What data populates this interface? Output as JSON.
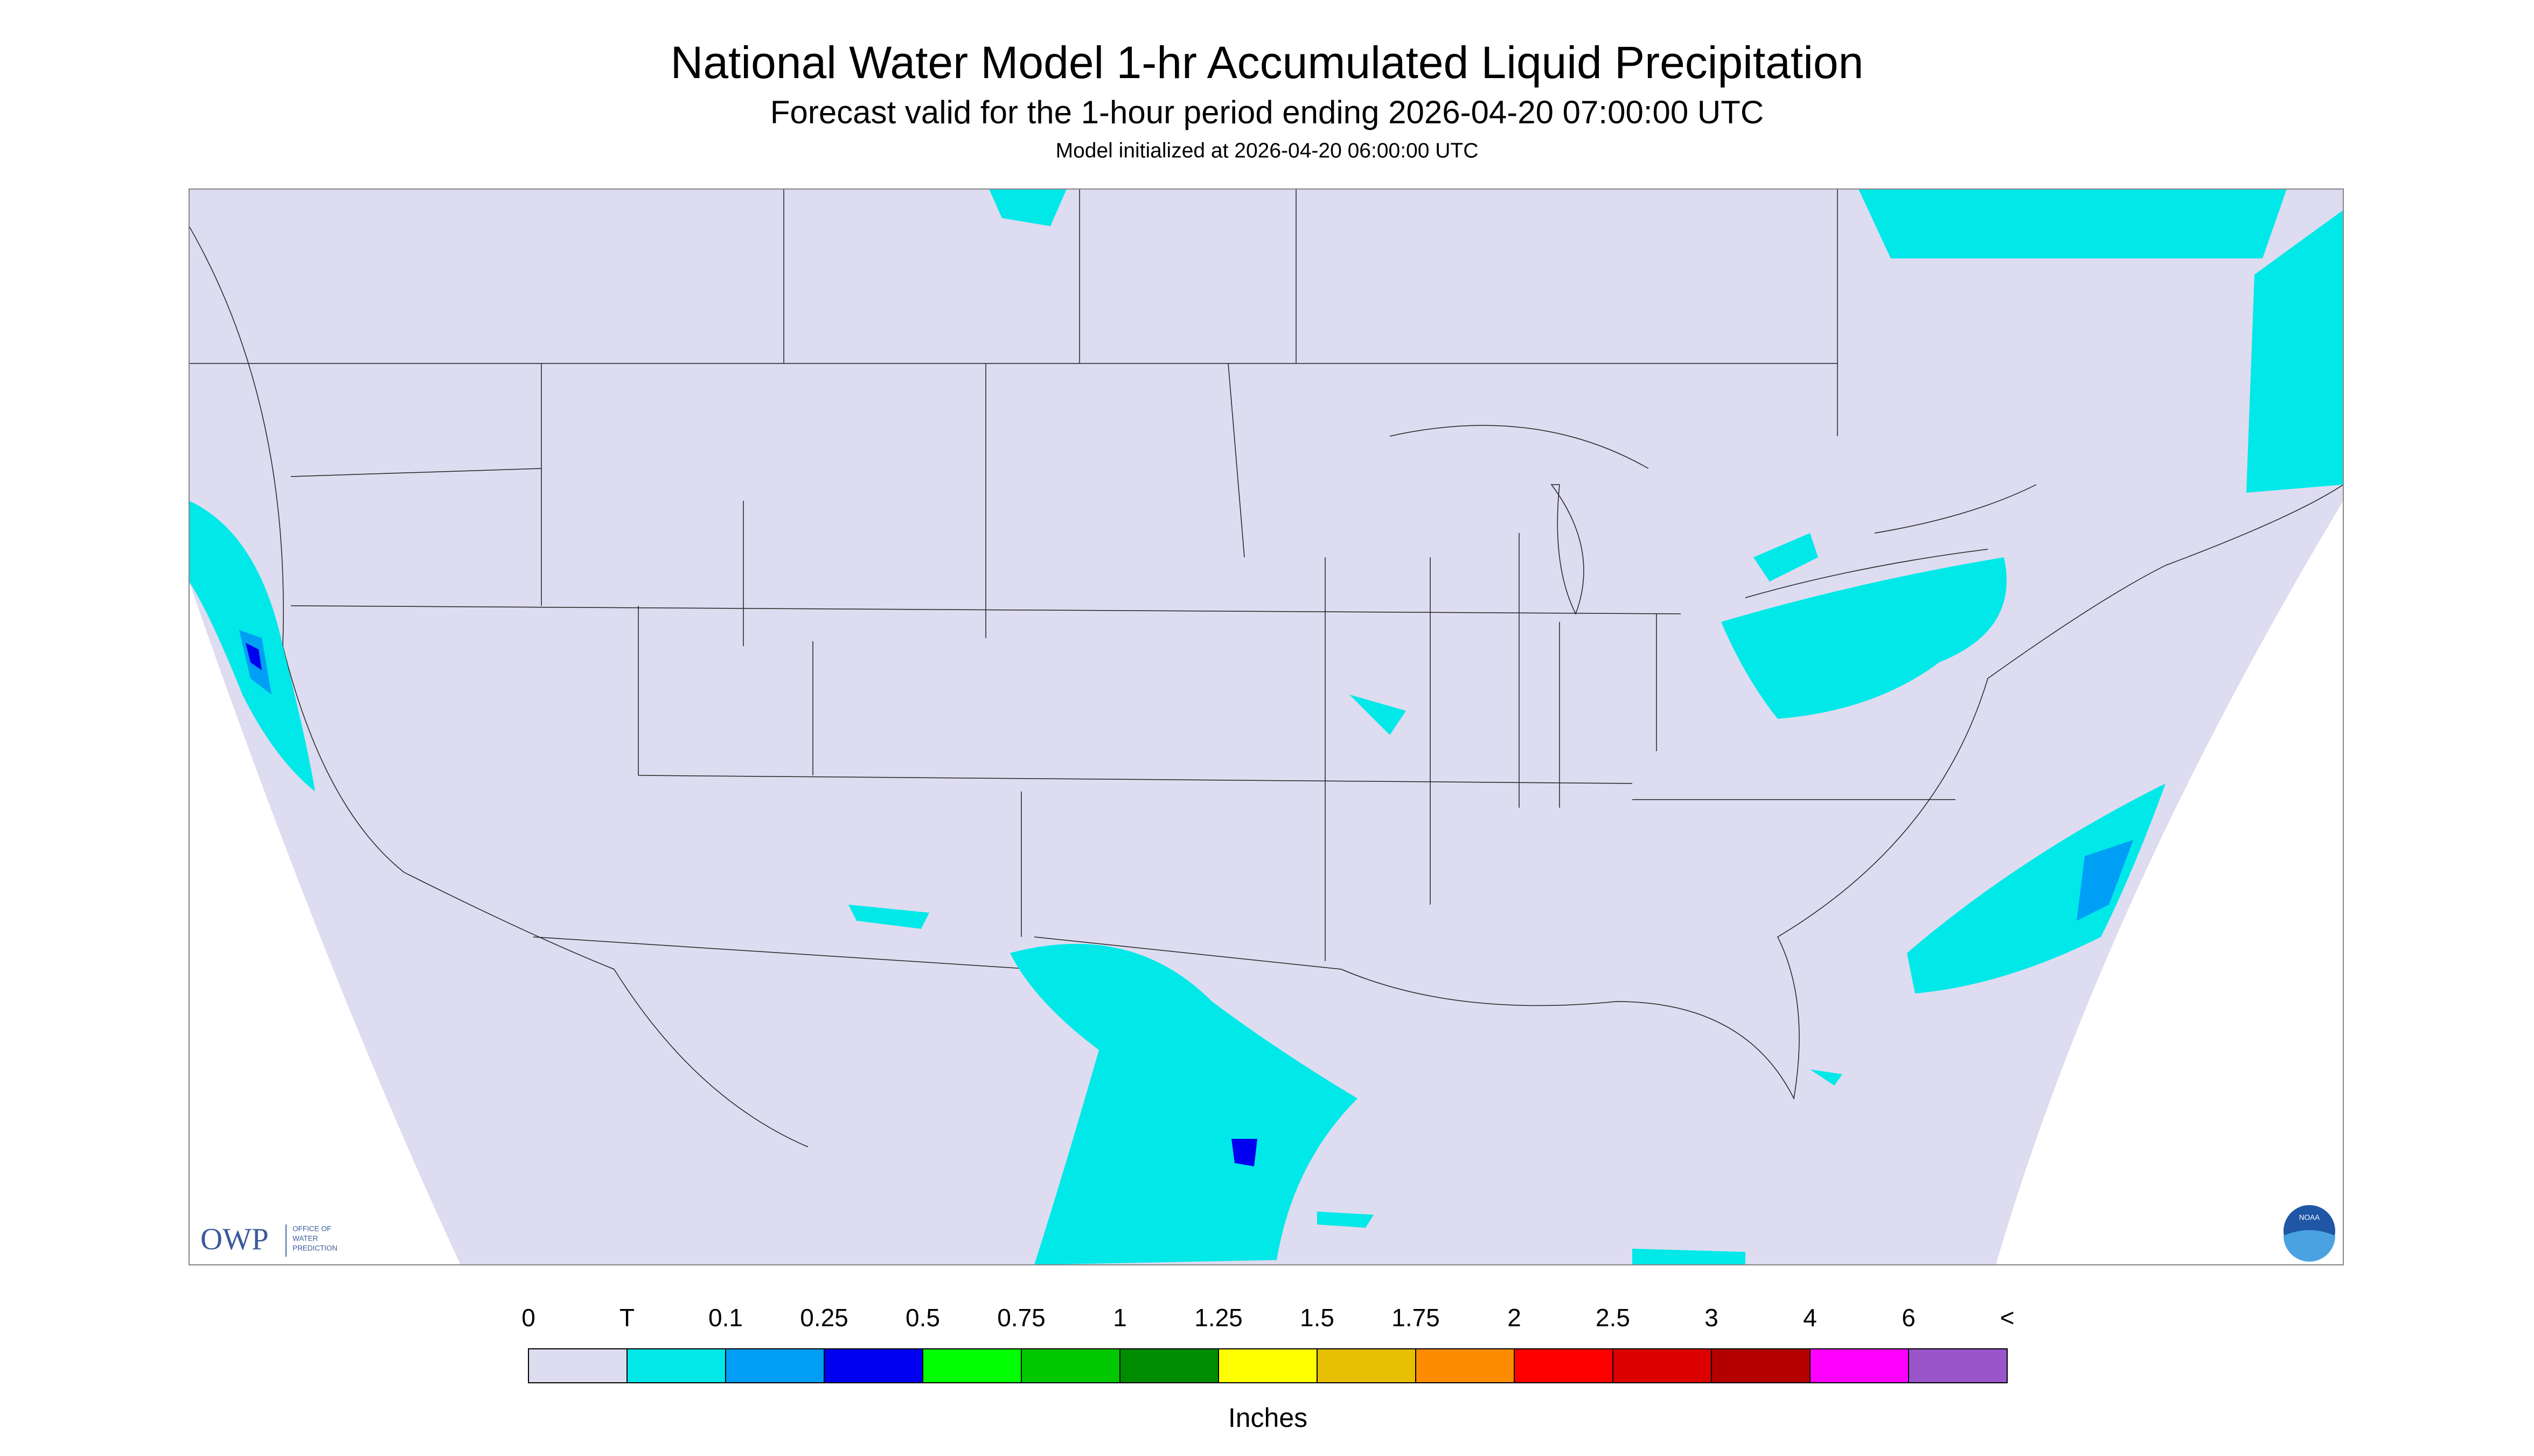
{
  "header": {
    "title": "National Water Model 1-hr Accumulated Liquid Precipitation",
    "subtitle": "Forecast valid for the 1-hour period ending 2026-04-20 07:00:00 UTC",
    "note": "Model initialized at 2026-04-20 06:00:00 UTC"
  },
  "legend": {
    "labels": [
      "0",
      "T",
      "0.1",
      "0.25",
      "0.5",
      "0.75",
      "1",
      "1.25",
      "1.5",
      "1.75",
      "2",
      "2.5",
      "3",
      "4",
      "6",
      "<"
    ],
    "colors": [
      "#dddcf0",
      "#00e8e8",
      "#009ff5",
      "#0000f0",
      "#00ff00",
      "#00c800",
      "#008c00",
      "#ffff00",
      "#e6c000",
      "#ff8c00",
      "#ff0000",
      "#dc0000",
      "#b40000",
      "#ff00ff",
      "#9955c9"
    ],
    "unit": "Inches"
  },
  "logos": {
    "owp": "OWP",
    "owp_text": [
      "OFFICE OF",
      "WATER",
      "PREDICTION"
    ],
    "noaa": "NOAA"
  }
}
